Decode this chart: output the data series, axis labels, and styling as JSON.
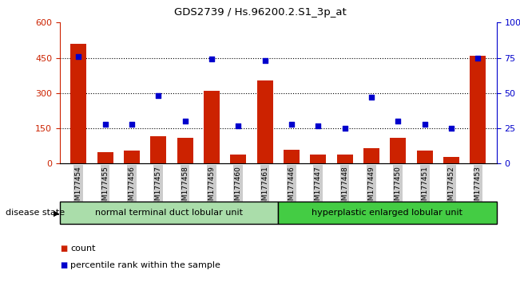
{
  "title": "GDS2739 / Hs.96200.2.S1_3p_at",
  "samples": [
    "GSM177454",
    "GSM177455",
    "GSM177456",
    "GSM177457",
    "GSM177458",
    "GSM177459",
    "GSM177460",
    "GSM177461",
    "GSM177446",
    "GSM177447",
    "GSM177448",
    "GSM177449",
    "GSM177450",
    "GSM177451",
    "GSM177452",
    "GSM177453"
  ],
  "counts": [
    510,
    50,
    55,
    115,
    110,
    310,
    40,
    355,
    60,
    38,
    38,
    65,
    110,
    55,
    28,
    460
  ],
  "percentiles": [
    76,
    28,
    28,
    48,
    30,
    74,
    27,
    73,
    28,
    27,
    25,
    47,
    30,
    28,
    25,
    75
  ],
  "group1_label": "normal terminal duct lobular unit",
  "group2_label": "hyperplastic enlarged lobular unit",
  "group1_count": 8,
  "group2_count": 8,
  "bar_color": "#cc2200",
  "dot_color": "#0000cc",
  "ylim_left": [
    0,
    600
  ],
  "ylim_right": [
    0,
    100
  ],
  "yticks_left": [
    0,
    150,
    300,
    450,
    600
  ],
  "yticks_right": [
    0,
    25,
    50,
    75,
    100
  ],
  "hlines": [
    150,
    300,
    450
  ],
  "group1_color": "#aaddaa",
  "group2_color": "#44cc44",
  "disease_state_label": "disease state",
  "legend_count_label": "count",
  "legend_pct_label": "percentile rank within the sample",
  "tick_bg_color": "#cccccc",
  "bg_color": "#ffffff"
}
